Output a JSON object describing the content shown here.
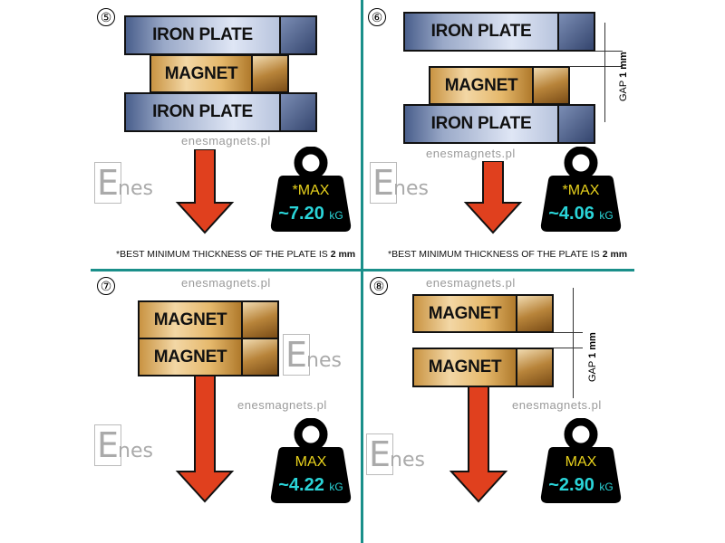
{
  "panels": [
    {
      "number": "⑤",
      "blocks": [
        "IRON PLATE",
        "MAGNET",
        "IRON PLATE"
      ],
      "weight": {
        "label": "*MAX",
        "value": "~7.20",
        "unit": "kG"
      },
      "footnote": {
        "text": "*BEST MINIMUM THICKNESS OF THE PLATE IS ",
        "value": "2 mm"
      }
    },
    {
      "number": "⑥",
      "blocks": [
        "IRON PLATE",
        "MAGNET",
        "IRON PLATE"
      ],
      "gap": {
        "label": "GAP",
        "value": "1 mm"
      },
      "weight": {
        "label": "*MAX",
        "value": "~4.06",
        "unit": "kG"
      },
      "footnote": {
        "text": "*BEST MINIMUM THICKNESS OF THE PLATE IS ",
        "value": "2 mm"
      }
    },
    {
      "number": "⑦",
      "blocks": [
        "MAGNET",
        "MAGNET"
      ],
      "weight": {
        "label": "MAX",
        "value": "~4.22",
        "unit": "kG"
      }
    },
    {
      "number": "⑧",
      "blocks": [
        "MAGNET",
        "MAGNET"
      ],
      "gap": {
        "label": "GAP",
        "value": "1 mm"
      },
      "weight": {
        "label": "MAX",
        "value": "~2.90",
        "unit": "kG"
      }
    }
  ],
  "watermark": {
    "url": "enesmagnets.pl",
    "logo": "Enes"
  },
  "colors": {
    "divider": "#1a8f8a",
    "arrow": "#e0401e",
    "weight": "#000000",
    "max_label": "#e8d21c",
    "value": "#2ad4d8"
  }
}
